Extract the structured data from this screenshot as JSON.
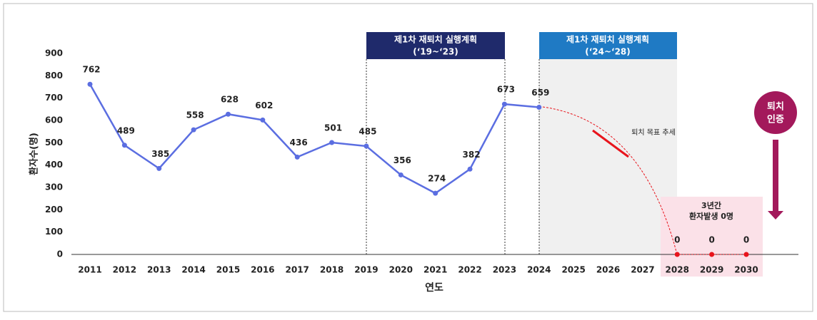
{
  "chart_data": {
    "type": "line",
    "y_label": "환자수(명)",
    "x_label": "연도",
    "categories": [
      "2011",
      "2012",
      "2013",
      "2014",
      "2015",
      "2016",
      "2017",
      "2018",
      "2019",
      "2020",
      "2021",
      "2022",
      "2023",
      "2024",
      "2025",
      "2026",
      "2027",
      "2028",
      "2029",
      "2030"
    ],
    "series": [
      {
        "values": [
          762,
          489,
          385,
          558,
          628,
          602,
          436,
          501,
          485,
          356,
          274,
          382,
          673,
          659,
          null,
          null,
          null,
          0,
          0,
          0
        ],
        "color": "#5b6ee1",
        "zero_color": "#e8141c"
      }
    ],
    "ylim": [
      0,
      900
    ],
    "yticks": [
      0,
      100,
      200,
      300,
      400,
      500,
      600,
      700,
      800,
      900
    ],
    "annotations": {
      "plan1": {
        "title": "제1차 재퇴치 실행계획",
        "period": "(‘19~‘23)",
        "color": "#1f2a6b"
      },
      "plan2": {
        "title": "제1차 재퇴치 실행계획",
        "period": "(‘24~‘28)",
        "color": "#1f7ac4"
      },
      "trend": "퇴치 목표 추세",
      "zero_note": [
        "3년간",
        "환자발생 0명"
      ],
      "certification": [
        "퇴치",
        "인증"
      ]
    }
  }
}
